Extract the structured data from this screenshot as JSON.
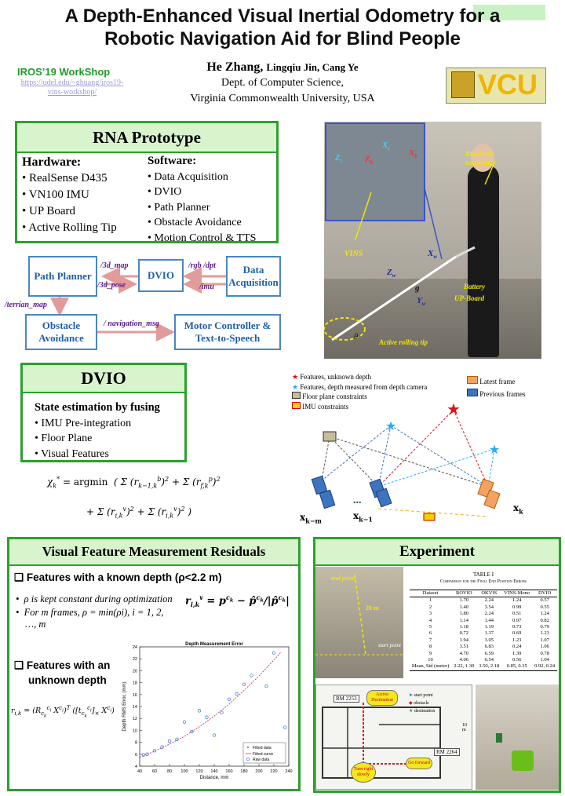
{
  "header": {
    "title_line1": "A Depth-Enhanced Visual Inertial Odometry for a",
    "title_line2": "Robotic Navigation Aid for Blind People",
    "workshop": "IROS’19 WorkShop",
    "workshop_url_line1": "https://udel.edu/~ghuang/iros19-",
    "workshop_url_line2": "vins-workshop/",
    "authors_bold": "He Zhang,",
    "authors_rest": "Lingqiu Jin, Cang Ye",
    "affiliation_line1": "Dept. of Computer Science,",
    "affiliation_line2": "Virginia Commonwealth University, USA",
    "logo_text": "VCU"
  },
  "rna": {
    "title": "RNA Prototype",
    "hardware_title": "Hardware:",
    "hardware": [
      "RealSense D435",
      "VN100 IMU",
      "UP Board",
      "Active Rolling Tip"
    ],
    "software_title": "Software:",
    "software": [
      "Data Acquisition",
      "DVIO",
      "Path Planner",
      "Obstacle Avoidance",
      "Motion Control & TTS"
    ]
  },
  "flow": {
    "path_planner": "Path Planner",
    "dvio": "DVIO",
    "data_acq": "Data Acquisition",
    "obstacle": "Obstacle Avoidance",
    "motor": "Motor Controller & Text-to-Speech",
    "lbl_3d_map": "/3d_map",
    "lbl_3d_pose": "/3d_pose",
    "lbl_rgb_dpt": "/rgb /dpt",
    "lbl_imu": "/imu",
    "lbl_terrian_map": "/terrian_map",
    "lbl_navigation_msg": "/ navigation_msg"
  },
  "photo_labels": {
    "zc": "Z",
    "xc": "X",
    "zb": "Z",
    "xb": "X",
    "bluetooth": "Bluetooth earphone",
    "vins": "VINS",
    "xw": "X",
    "zw": "Z",
    "yw": "Y",
    "g": "g",
    "battery": "Battery",
    "upboard": "UP-Board",
    "rolling_tip": "Active rolling tip",
    "theta": "θ"
  },
  "dvio": {
    "title": "DVIO",
    "subtitle": "State estimation by fusing",
    "items": [
      "IMU Pre-integration",
      "Floor Plane",
      "Visual Features"
    ]
  },
  "legend": {
    "red_star": "Features, unknown depth",
    "blue_star": "Features, depth measured from depth camera",
    "floor": "Floor plane constraints",
    "imu": "IMU constraints",
    "latest": "Latest frame",
    "previous": "Previous frames",
    "xkm": "x",
    "xk1": "x",
    "xk": "x",
    "dots": "..."
  },
  "residuals": {
    "title": "Visual Feature Measurement Residuals",
    "known_heading": "Features with a known depth (ρ<2.2 m)",
    "bullet1": "ρ is kept constant during optimization",
    "bullet2": "For m frames, ρ = min(ρi), i = 1, 2, …, m",
    "unknown_heading_1": "Features with an",
    "unknown_heading_2": "unknown depth"
  },
  "chart_data": {
    "type": "scatter",
    "title": "Depth Measurement Error",
    "xlabel": "Distance, mm",
    "ylabel": "Depth RMS Error, (mm)",
    "xlim": [
      40,
      240
    ],
    "ylim": [
      4,
      24
    ],
    "xticks": [
      40,
      60,
      80,
      100,
      120,
      140,
      160,
      180,
      200,
      220,
      240
    ],
    "yticks": [
      4,
      6,
      8,
      10,
      12,
      14,
      16,
      18,
      20,
      22,
      24
    ],
    "legend": [
      "Fitted data",
      "Fitted curve",
      "Raw data"
    ],
    "legend_position": "lower-right",
    "raw": [
      {
        "x": 45,
        "y": 5.9
      },
      {
        "x": 50,
        "y": 6.0
      },
      {
        "x": 60,
        "y": 6.6
      },
      {
        "x": 70,
        "y": 7.2
      },
      {
        "x": 80,
        "y": 8.2
      },
      {
        "x": 90,
        "y": 8.5
      },
      {
        "x": 100,
        "y": 11.4
      },
      {
        "x": 110,
        "y": 9.8
      },
      {
        "x": 120,
        "y": 13.3
      },
      {
        "x": 130,
        "y": 12.2
      },
      {
        "x": 140,
        "y": 9.2
      },
      {
        "x": 150,
        "y": 13.0
      },
      {
        "x": 160,
        "y": 15.2
      },
      {
        "x": 170,
        "y": 16.1
      },
      {
        "x": 180,
        "y": 17.7
      },
      {
        "x": 190,
        "y": 19.2
      },
      {
        "x": 210,
        "y": 17.4
      },
      {
        "x": 220,
        "y": 23.0
      },
      {
        "x": 235,
        "y": 10.5
      }
    ],
    "curve": [
      {
        "x": 40,
        "y": 5.5
      },
      {
        "x": 60,
        "y": 6.5
      },
      {
        "x": 80,
        "y": 7.7
      },
      {
        "x": 100,
        "y": 9.0
      },
      {
        "x": 120,
        "y": 10.6
      },
      {
        "x": 140,
        "y": 12.4
      },
      {
        "x": 160,
        "y": 14.4
      },
      {
        "x": 180,
        "y": 16.7
      },
      {
        "x": 200,
        "y": 19.1
      },
      {
        "x": 220,
        "y": 21.8
      },
      {
        "x": 230,
        "y": 23.2
      }
    ]
  },
  "experiment": {
    "title": "Experiment",
    "end_point": "end point",
    "distance_20m": "20 m",
    "start_point": "start point",
    "table_title": "TABLE I",
    "table_caption": "Comparison for the Final End Position Errors",
    "table_headers": [
      "Dataset",
      "ROVIO",
      "OKVIS",
      "VINS-Mono",
      "DVIO"
    ],
    "table_rows": [
      [
        "1",
        "1.70",
        "2.24",
        "1.24",
        "0.57"
      ],
      [
        "2",
        "1.40",
        "3.54",
        "0.99",
        "0.55"
      ],
      [
        "3",
        "1.80",
        "2.24",
        "0.51",
        "1.24"
      ],
      [
        "4",
        "1.14",
        "1.44",
        "0.97",
        "0.82"
      ],
      [
        "5",
        "1.18",
        "1.19",
        "0.73",
        "0.79"
      ],
      [
        "6",
        "0.72",
        "1.37",
        "0.69",
        "1.23"
      ],
      [
        "7",
        "1.94",
        "3.05",
        "1.23",
        "1.07"
      ],
      [
        "8",
        "3.51",
        "6.83",
        "0.24",
        "1.06"
      ],
      [
        "9",
        "4.70",
        "6.59",
        "1.39",
        "0.78"
      ],
      [
        "10",
        "4.06",
        "6.54",
        "0.56",
        "1.04"
      ],
      [
        "Mean, Std (meter)",
        "2.22, 1.30",
        "3.50, 2.18",
        "0.85, 0.35",
        "0.92, 0.24"
      ]
    ],
    "map_rm2253": "RM 2253",
    "map_arrive": "Arrive Destination",
    "map_legend_start": "start point",
    "map_legend_obstacle": "obstacle",
    "map_legend_destination": "destination",
    "map_scale": "10 m",
    "map_rm2264": "RM 2264",
    "map_turn_right": "Turn right slowly",
    "map_go_forward": "Go forward"
  },
  "colors": {
    "green_border": "#2ca02c",
    "green_fill": "#d7f4cc",
    "flow_blue": "#1f5fa8",
    "edge_purple": "#5b1a8b",
    "photo_yellow": "#f2e600"
  }
}
